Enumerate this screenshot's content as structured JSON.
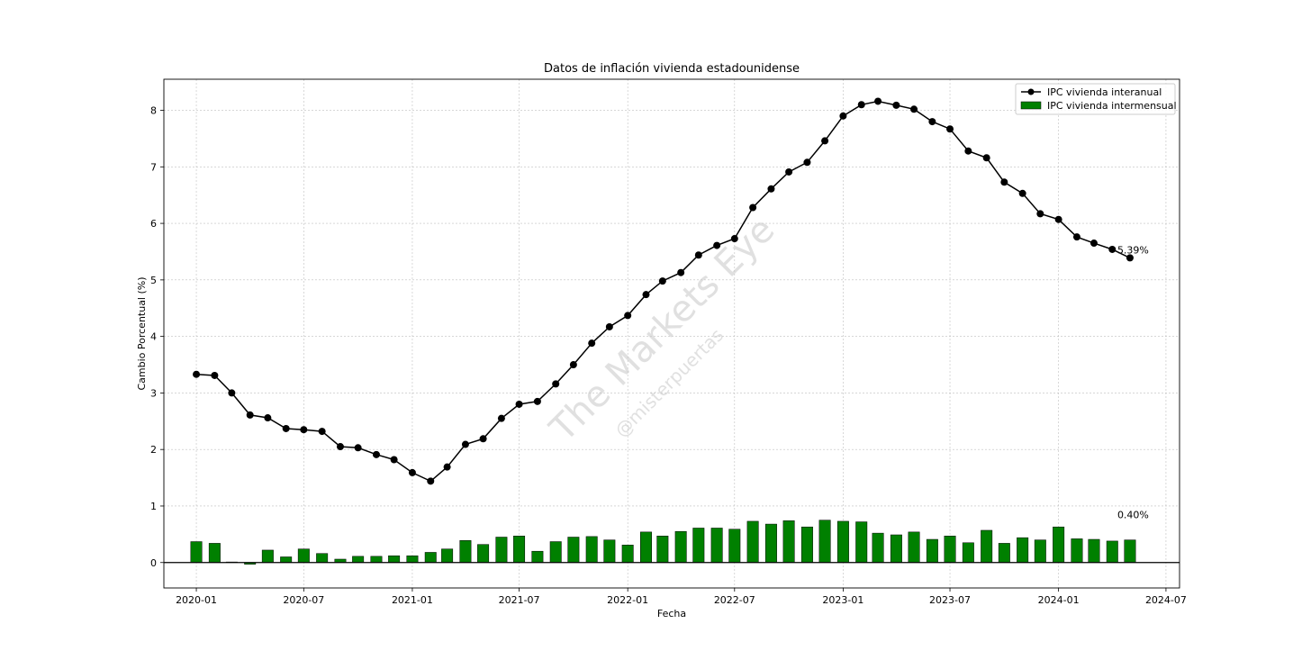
{
  "chart_data": {
    "type": "line+bar",
    "title": "Datos de inflación vivienda estadounidense",
    "xlabel": "Fecha",
    "ylabel": "Cambio Porcentual (%)",
    "ylim": [
      -0.45,
      8.55
    ],
    "xlim": [
      "2019-11-07",
      "2024-07-24"
    ],
    "yticks": [
      0,
      1,
      2,
      3,
      4,
      5,
      6,
      7,
      8
    ],
    "xticks": [
      "2020-01",
      "2020-07",
      "2021-01",
      "2021-07",
      "2022-01",
      "2022-07",
      "2023-01",
      "2023-07",
      "2024-01",
      "2024-07"
    ],
    "grid": true,
    "legend_position": "top-right",
    "dates": [
      "2020-01",
      "2020-02",
      "2020-03",
      "2020-04",
      "2020-05",
      "2020-06",
      "2020-07",
      "2020-08",
      "2020-09",
      "2020-10",
      "2020-11",
      "2020-12",
      "2021-01",
      "2021-02",
      "2021-03",
      "2021-04",
      "2021-05",
      "2021-06",
      "2021-07",
      "2021-08",
      "2021-09",
      "2021-10",
      "2021-11",
      "2021-12",
      "2022-01",
      "2022-02",
      "2022-03",
      "2022-04",
      "2022-05",
      "2022-06",
      "2022-07",
      "2022-08",
      "2022-09",
      "2022-10",
      "2022-11",
      "2022-12",
      "2023-01",
      "2023-02",
      "2023-03",
      "2023-04",
      "2023-05",
      "2023-06",
      "2023-07",
      "2023-08",
      "2023-09",
      "2023-10",
      "2023-11",
      "2023-12",
      "2024-01",
      "2024-02",
      "2024-03",
      "2024-04",
      "2024-05"
    ],
    "series": [
      {
        "name": "IPC vivienda interanual",
        "kind": "line",
        "color": "#000000",
        "values": [
          3.33,
          3.31,
          3.0,
          2.61,
          2.56,
          2.37,
          2.35,
          2.32,
          2.05,
          2.03,
          1.91,
          1.82,
          1.59,
          1.44,
          1.69,
          2.09,
          2.19,
          2.55,
          2.8,
          2.85,
          3.16,
          3.5,
          3.88,
          4.17,
          4.37,
          4.74,
          4.98,
          5.13,
          5.44,
          5.61,
          5.73,
          6.28,
          6.61,
          6.91,
          7.08,
          7.46,
          7.9,
          8.1,
          8.16,
          8.09,
          8.02,
          7.8,
          7.67,
          7.28,
          7.16,
          6.73,
          6.53,
          6.17,
          6.07,
          5.76,
          5.65,
          5.54,
          5.39
        ]
      },
      {
        "name": "IPC vivienda intermensual",
        "kind": "bar",
        "color": "#008000",
        "values": [
          0.37,
          0.34,
          0.01,
          -0.03,
          0.22,
          0.1,
          0.24,
          0.16,
          0.06,
          0.11,
          0.11,
          0.12,
          0.12,
          0.18,
          0.24,
          0.39,
          0.32,
          0.45,
          0.47,
          0.2,
          0.37,
          0.45,
          0.46,
          0.4,
          0.31,
          0.54,
          0.47,
          0.55,
          0.61,
          0.61,
          0.59,
          0.73,
          0.68,
          0.74,
          0.63,
          0.75,
          0.73,
          0.72,
          0.52,
          0.49,
          0.54,
          0.41,
          0.47,
          0.35,
          0.57,
          0.34,
          0.44,
          0.4,
          0.63,
          0.42,
          0.41,
          0.38,
          0.4
        ]
      }
    ],
    "annotations": [
      {
        "text": "5.39%",
        "x": "2024-05",
        "y": 5.39,
        "series": "IPC vivienda interanual"
      },
      {
        "text": "0.40%",
        "x": "2024-05",
        "y": 0.4,
        "series": "IPC vivienda intermensual"
      }
    ],
    "watermark": {
      "main": "The Markets Eye",
      "sub": "@misterpuertas"
    }
  }
}
